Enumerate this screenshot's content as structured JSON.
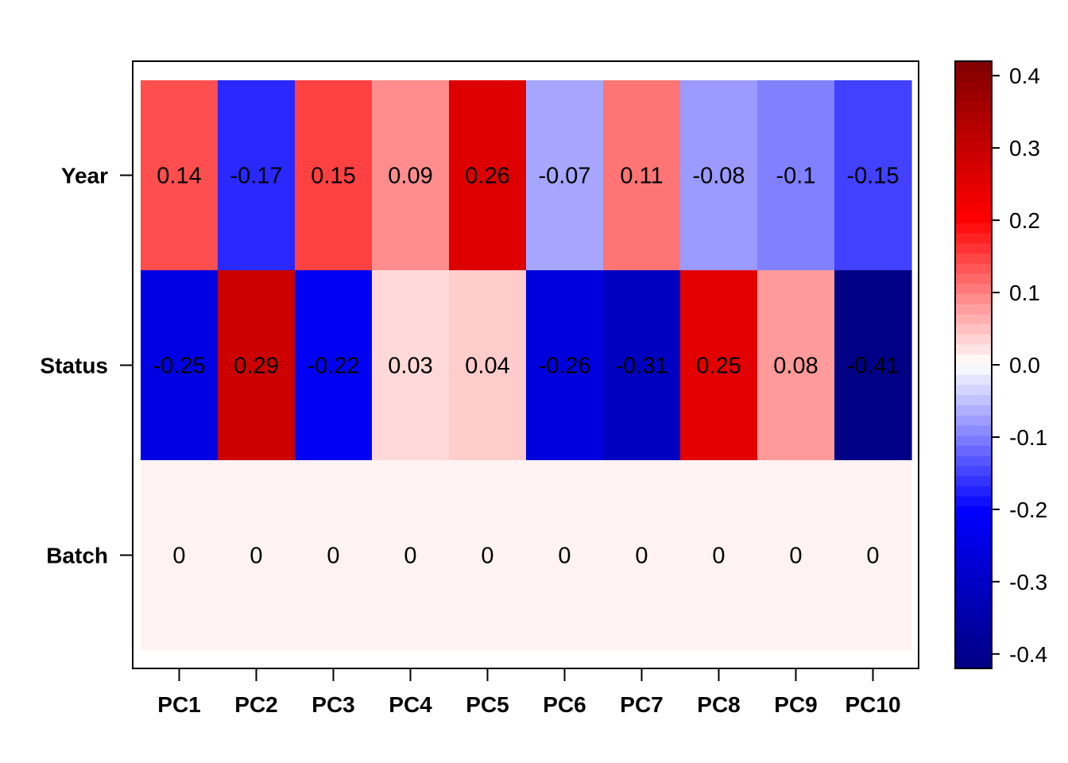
{
  "chart_data": {
    "type": "heatmap",
    "title": "",
    "xlabel": "",
    "ylabel": "",
    "columns": [
      "PC1",
      "PC2",
      "PC3",
      "PC4",
      "PC5",
      "PC6",
      "PC7",
      "PC8",
      "PC9",
      "PC10"
    ],
    "rows": [
      "Year",
      "Status",
      "Batch"
    ],
    "values": [
      [
        0.14,
        -0.17,
        0.15,
        0.09,
        0.26,
        -0.07,
        0.11,
        -0.08,
        -0.1,
        -0.15
      ],
      [
        -0.25,
        0.29,
        -0.22,
        0.03,
        0.04,
        -0.26,
        -0.31,
        0.25,
        0.08,
        -0.41
      ],
      [
        0,
        0,
        0,
        0,
        0,
        0,
        0,
        0,
        0,
        0
      ]
    ],
    "colorscale": {
      "range": [
        -0.42,
        0.42
      ],
      "ticks": [
        0.4,
        0.3,
        0.2,
        0.1,
        0.0,
        -0.1,
        -0.2,
        -0.3,
        -0.4
      ],
      "tick_labels": [
        "0.4",
        "0.3",
        "0.2",
        "0.1",
        "0.0",
        "-0.1",
        "-0.2",
        "-0.3",
        "-0.4"
      ],
      "colors": {
        "low": "#000080",
        "mid_low": "#0000ff",
        "center": "#ffffff",
        "mid_high": "#ff0000",
        "high": "#800000"
      }
    },
    "grid": false,
    "legend": "right colorbar"
  }
}
